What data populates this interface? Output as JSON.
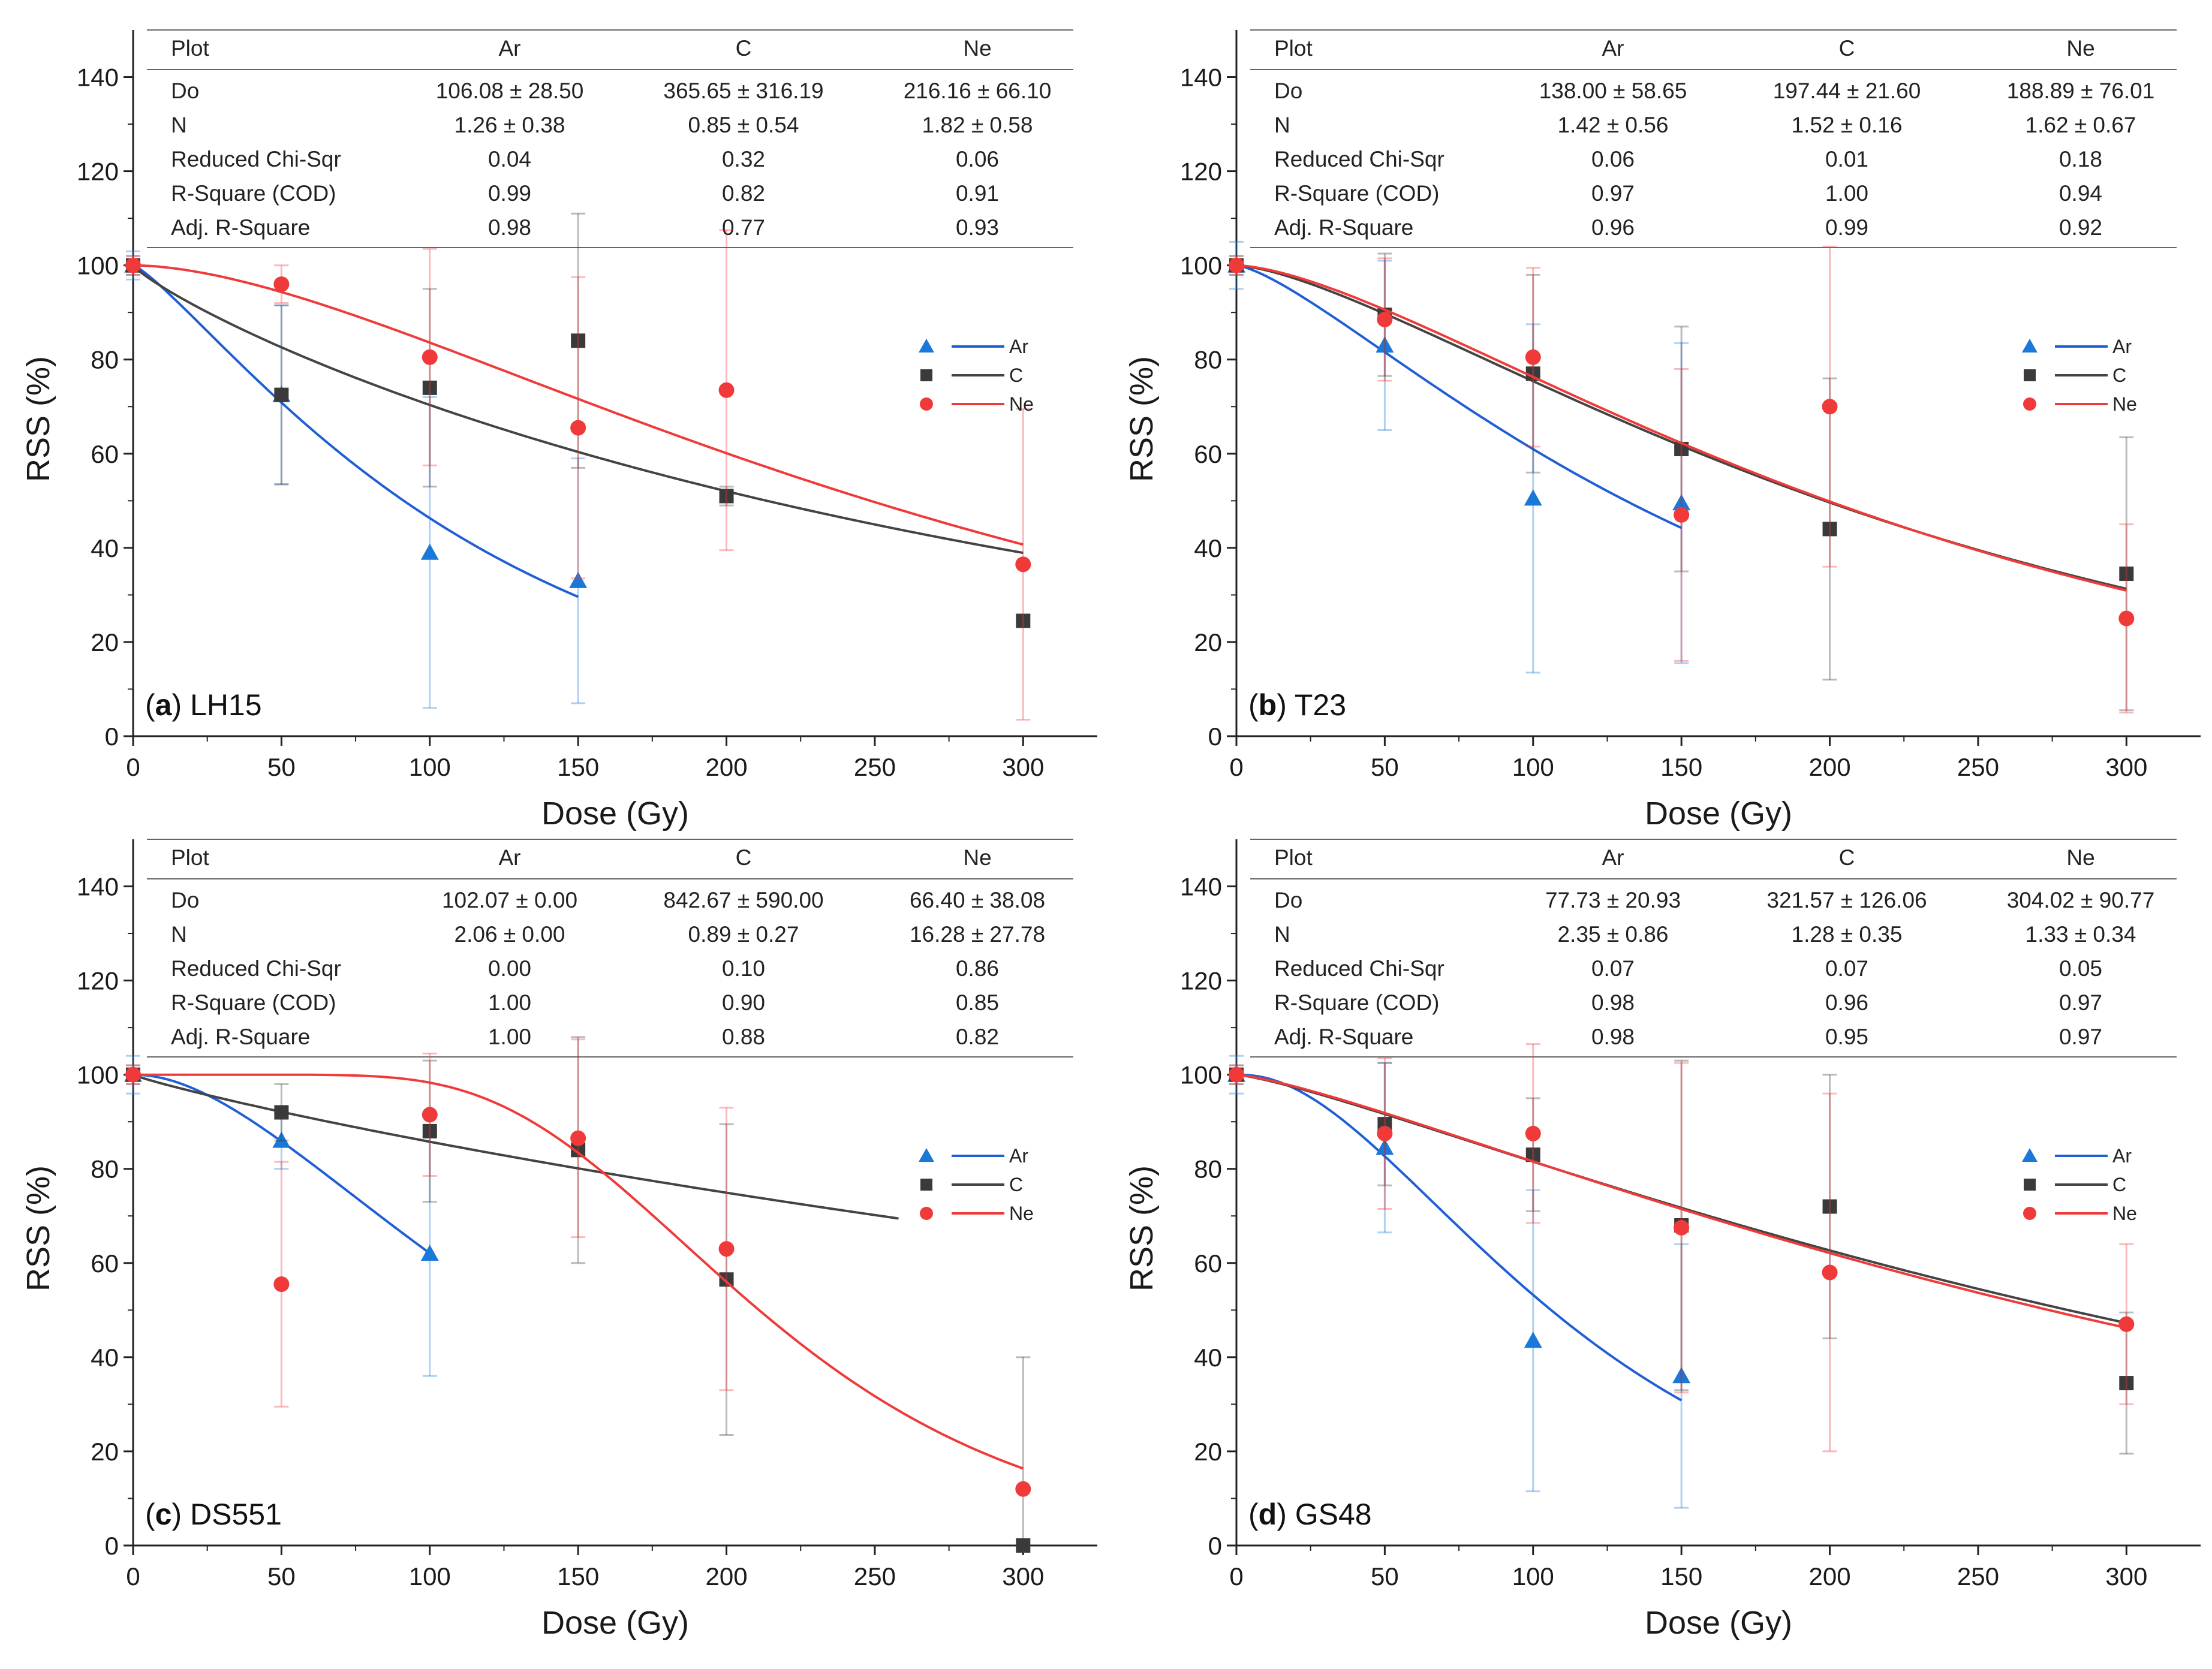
{
  "figure": {
    "colors": {
      "Ar": "#1f5fd6",
      "Ar_marker": "#1a78d8",
      "C": "#444444",
      "C_marker": "#3a3a3a",
      "Ne": "#f03a3a",
      "Ne_marker": "#f03a3a",
      "axis": "#222222",
      "table_line": "#666666"
    }
  },
  "chart_data": [
    {
      "type": "scatter",
      "panel_id": "a",
      "panel_name": "LH15",
      "xlabel": "Dose (Gy)",
      "ylabel": "RSS (%)",
      "xlim": [
        0,
        325
      ],
      "ylim": [
        0,
        150
      ],
      "xticks": [
        0,
        50,
        100,
        150,
        200,
        250,
        300
      ],
      "yticks": [
        0,
        20,
        40,
        60,
        80,
        100,
        120,
        140
      ],
      "legend_position": "right",
      "table": {
        "header": [
          "Plot",
          "Ar",
          "C",
          "Ne"
        ],
        "rows": [
          [
            "Do",
            "106.08 ± 28.50",
            "365.65 ± 316.19",
            "216.16 ± 66.10"
          ],
          [
            "N",
            "1.26 ± 0.38",
            "0.85 ± 0.54",
            "1.82 ± 0.58"
          ],
          [
            "Reduced Chi-Sqr",
            "0.04",
            "0.32",
            "0.06"
          ],
          [
            "R-Square (COD)",
            "0.99",
            "0.82",
            "0.91"
          ],
          [
            "Adj. R-Square",
            "0.98",
            "0.77",
            "0.93"
          ]
        ]
      },
      "series": [
        {
          "name": "Ar",
          "marker": "triangle",
          "x": [
            0,
            50,
            100,
            150
          ],
          "y": [
            100,
            72.5,
            39,
            33
          ],
          "err": [
            3,
            19,
            33,
            26
          ],
          "fit": {
            "D0": 106.08,
            "N": 1.26,
            "x_max": 150
          }
        },
        {
          "name": "C",
          "marker": "square",
          "x": [
            0,
            50,
            100,
            150,
            200,
            300
          ],
          "y": [
            100,
            72.5,
            74,
            84,
            51,
            24.5
          ],
          "err": [
            2,
            19,
            21,
            27,
            2,
            0
          ],
          "fit": {
            "D0": 365.65,
            "N": 0.85,
            "x_max": 300
          }
        },
        {
          "name": "Ne",
          "marker": "circle",
          "x": [
            0,
            50,
            100,
            150,
            200,
            300
          ],
          "y": [
            100,
            96,
            80.5,
            65.5,
            73.5,
            36.5
          ],
          "err": [
            2,
            4,
            23,
            32,
            34,
            33
          ],
          "fit": {
            "D0": 216.16,
            "N": 1.82,
            "x_max": 300
          }
        }
      ]
    },
    {
      "type": "scatter",
      "panel_id": "b",
      "panel_name": "T23",
      "xlabel": "Dose (Gy)",
      "ylabel": "RSS (%)",
      "xlim": [
        0,
        325
      ],
      "ylim": [
        0,
        150
      ],
      "xticks": [
        0,
        50,
        100,
        150,
        200,
        250,
        300
      ],
      "yticks": [
        0,
        20,
        40,
        60,
        80,
        100,
        120,
        140
      ],
      "legend_position": "right",
      "table": {
        "header": [
          "Plot",
          "Ar",
          "C",
          "Ne"
        ],
        "rows": [
          [
            "Do",
            "138.00 ± 58.65",
            "197.44 ± 21.60",
            "188.89 ± 76.01"
          ],
          [
            "N",
            "1.42 ± 0.56",
            "1.52 ± 0.16",
            "1.62 ± 0.67"
          ],
          [
            "Reduced Chi-Sqr",
            "0.06",
            "0.01",
            "0.18"
          ],
          [
            "R-Square (COD)",
            "0.97",
            "1.00",
            "0.94"
          ],
          [
            "Adj. R-Square",
            "0.96",
            "0.99",
            "0.92"
          ]
        ]
      },
      "series": [
        {
          "name": "Ar",
          "marker": "triangle",
          "x": [
            0,
            50,
            100,
            150
          ],
          "y": [
            100,
            83,
            50.5,
            49.5
          ],
          "err": [
            5,
            18,
            37,
            34
          ],
          "fit": {
            "D0": 138.0,
            "N": 1.42,
            "x_max": 150
          }
        },
        {
          "name": "C",
          "marker": "square",
          "x": [
            0,
            50,
            100,
            150,
            200,
            300
          ],
          "y": [
            100,
            89.5,
            77,
            61,
            44,
            34.5
          ],
          "err": [
            2,
            13,
            21,
            26,
            32,
            29
          ],
          "fit": {
            "D0": 197.44,
            "N": 1.52,
            "x_max": 300
          }
        },
        {
          "name": "Ne",
          "marker": "circle",
          "x": [
            0,
            50,
            100,
            150,
            200,
            300
          ],
          "y": [
            100,
            88.5,
            80.5,
            47,
            70,
            25
          ],
          "err": [
            2,
            13,
            19,
            31,
            34,
            20
          ],
          "fit": {
            "D0": 188.89,
            "N": 1.62,
            "x_max": 300
          }
        }
      ]
    },
    {
      "type": "scatter",
      "panel_id": "c",
      "panel_name": "DS551",
      "xlabel": "Dose (Gy)",
      "ylabel": "RSS (%)",
      "xlim": [
        0,
        325
      ],
      "ylim": [
        0,
        150
      ],
      "xticks": [
        0,
        50,
        100,
        150,
        200,
        250,
        300
      ],
      "yticks": [
        0,
        20,
        40,
        60,
        80,
        100,
        120,
        140
      ],
      "legend_position": "right",
      "table": {
        "header": [
          "Plot",
          "Ar",
          "C",
          "Ne"
        ],
        "rows": [
          [
            "Do",
            "102.07 ± 0.00",
            "842.67 ± 590.00",
            "66.40 ± 38.08"
          ],
          [
            "N",
            "2.06 ± 0.00",
            "0.89 ± 0.27",
            "16.28 ± 27.78"
          ],
          [
            "Reduced Chi-Sqr",
            "0.00",
            "0.10",
            "0.86"
          ],
          [
            "R-Square (COD)",
            "1.00",
            "0.90",
            "0.85"
          ],
          [
            "Adj. R-Square",
            "1.00",
            "0.88",
            "0.82"
          ]
        ]
      },
      "series": [
        {
          "name": "Ar",
          "marker": "triangle",
          "x": [
            0,
            50,
            100
          ],
          "y": [
            100,
            86,
            62
          ],
          "err": [
            4,
            6,
            26
          ],
          "fit": {
            "D0": 102.07,
            "N": 2.06,
            "x_max": 100
          }
        },
        {
          "name": "C",
          "marker": "square",
          "x": [
            0,
            50,
            100,
            150,
            200,
            300
          ],
          "y": [
            100,
            92,
            88,
            84,
            56.5,
            0
          ],
          "err": [
            2,
            6,
            15,
            24,
            33,
            40
          ],
          "fit": {
            "D0": 842.67,
            "N": 0.89,
            "x_max": 258
          }
        },
        {
          "name": "Ne",
          "marker": "circle",
          "x": [
            0,
            50,
            100,
            150,
            200,
            300
          ],
          "y": [
            100,
            55.5,
            91.5,
            86.5,
            63,
            12
          ],
          "err": [
            2,
            26,
            13,
            21,
            30,
            0
          ],
          "fit": {
            "D0": 66.4,
            "N": 16.28,
            "x_max": 300
          }
        }
      ]
    },
    {
      "type": "scatter",
      "panel_id": "d",
      "panel_name": "GS48",
      "xlabel": "Dose (Gy)",
      "ylabel": "RSS (%)",
      "xlim": [
        0,
        325
      ],
      "ylim": [
        0,
        150
      ],
      "xticks": [
        0,
        50,
        100,
        150,
        200,
        250,
        300
      ],
      "yticks": [
        0,
        20,
        40,
        60,
        80,
        100,
        120,
        140
      ],
      "legend_position": "right",
      "table": {
        "header": [
          "Plot",
          "Ar",
          "C",
          "Ne"
        ],
        "rows": [
          [
            "Do",
            "77.73 ± 20.93",
            "321.57 ± 126.06",
            "304.02 ± 90.77"
          ],
          [
            "N",
            "2.35 ± 0.86",
            "1.28 ± 0.35",
            "1.33 ± 0.34"
          ],
          [
            "Reduced Chi-Sqr",
            "0.07",
            "0.07",
            "0.05"
          ],
          [
            "R-Square (COD)",
            "0.98",
            "0.96",
            "0.97"
          ],
          [
            "Adj. R-Square",
            "0.98",
            "0.95",
            "0.97"
          ]
        ]
      },
      "series": [
        {
          "name": "Ar",
          "marker": "triangle",
          "x": [
            0,
            50,
            100,
            150
          ],
          "y": [
            100,
            84.5,
            43.5,
            36
          ],
          "err": [
            4,
            18,
            32,
            28
          ],
          "fit": {
            "D0": 77.73,
            "N": 2.35,
            "x_max": 150
          }
        },
        {
          "name": "C",
          "marker": "square",
          "x": [
            0,
            50,
            100,
            150,
            200,
            300
          ],
          "y": [
            100,
            89.5,
            83,
            68,
            72,
            34.5
          ],
          "err": [
            2,
            13,
            12,
            35,
            28,
            15
          ],
          "fit": {
            "D0": 321.57,
            "N": 1.28,
            "x_max": 300
          }
        },
        {
          "name": "Ne",
          "marker": "circle",
          "x": [
            0,
            50,
            100,
            150,
            200,
            300
          ],
          "y": [
            100,
            87.5,
            87.5,
            67.5,
            58,
            47
          ],
          "err": [
            2,
            16,
            19,
            35,
            38,
            17
          ],
          "fit": {
            "D0": 304.02,
            "N": 1.33,
            "x_max": 300
          }
        }
      ]
    }
  ]
}
